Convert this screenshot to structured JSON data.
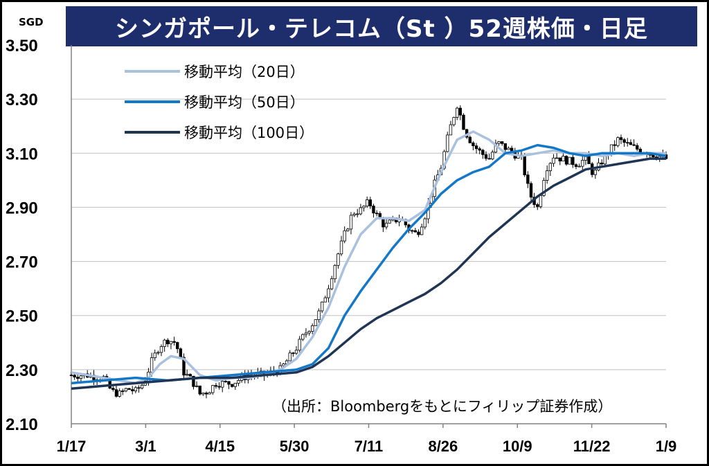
{
  "title": "シンガポール・テレコム（St ）52週株価・日足",
  "unit_label": "SGD",
  "source_note": "（出所：Bloombergをもとにフィリップ証券作成）",
  "colors": {
    "title_bg": "#1e2d6b",
    "ma20": "#a9c0df",
    "ma50": "#1478c8",
    "ma100": "#1f3553",
    "candle": "#000000"
  },
  "chart_data": {
    "type": "candlestick-line",
    "title": "シンガポール・テレコム（St ）52週株価・日足",
    "ylabel": "SGD",
    "ylim": [
      2.1,
      3.5
    ],
    "yticks": [
      "3.50",
      "3.30",
      "3.10",
      "2.90",
      "2.70",
      "2.50",
      "2.30",
      "2.10"
    ],
    "yvalues": [
      3.5,
      3.3,
      3.1,
      2.9,
      2.7,
      2.5,
      2.3,
      2.1
    ],
    "x_ticks": [
      "1/17",
      "3/1",
      "4/15",
      "5/30",
      "7/11",
      "8/26",
      "10/9",
      "11/22",
      "1/9"
    ],
    "grid": true,
    "legend_position": "top-left",
    "series": [
      {
        "name": "移動平均（20日）",
        "color": "#a9c0df",
        "x": [
          0,
          10,
          20,
          30,
          40,
          48,
          55,
          62,
          70,
          80,
          90,
          100,
          110,
          120,
          130,
          140,
          150,
          160,
          170,
          180,
          190,
          200,
          210,
          220,
          230,
          240,
          250,
          260,
          270,
          280,
          290,
          300,
          310,
          320,
          330,
          340,
          350,
          360,
          370
        ],
        "values": [
          2.29,
          2.28,
          2.27,
          2.26,
          2.25,
          2.27,
          2.32,
          2.35,
          2.34,
          2.28,
          2.26,
          2.27,
          2.27,
          2.28,
          2.3,
          2.34,
          2.42,
          2.53,
          2.68,
          2.8,
          2.86,
          2.86,
          2.85,
          2.89,
          3.03,
          3.15,
          3.18,
          3.15,
          3.1,
          3.09,
          3.1,
          3.11,
          3.1,
          3.1,
          3.09,
          3.1,
          3.09,
          3.1,
          3.1
        ]
      },
      {
        "name": "移動平均（50日）",
        "color": "#1478c8",
        "x": [
          0,
          20,
          40,
          60,
          80,
          100,
          120,
          140,
          150,
          160,
          170,
          180,
          190,
          200,
          210,
          220,
          230,
          240,
          250,
          260,
          270,
          280,
          290,
          300,
          310,
          320,
          330,
          340,
          350,
          360,
          370
        ],
        "values": [
          2.25,
          2.26,
          2.27,
          2.26,
          2.27,
          2.28,
          2.29,
          2.3,
          2.32,
          2.38,
          2.5,
          2.59,
          2.67,
          2.75,
          2.82,
          2.88,
          2.95,
          3.0,
          3.03,
          3.05,
          3.1,
          3.11,
          3.13,
          3.12,
          3.1,
          3.09,
          3.1,
          3.1,
          3.1,
          3.1,
          3.09
        ]
      },
      {
        "name": "移動平均（100日）",
        "color": "#1f3553",
        "x": [
          0,
          20,
          40,
          60,
          80,
          100,
          120,
          140,
          150,
          160,
          170,
          180,
          190,
          200,
          210,
          220,
          230,
          240,
          250,
          260,
          270,
          280,
          290,
          300,
          310,
          320,
          330,
          340,
          350,
          360,
          370
        ],
        "values": [
          2.23,
          2.24,
          2.25,
          2.26,
          2.27,
          2.27,
          2.28,
          2.29,
          2.31,
          2.35,
          2.4,
          2.45,
          2.49,
          2.52,
          2.55,
          2.58,
          2.62,
          2.67,
          2.73,
          2.79,
          2.84,
          2.89,
          2.94,
          2.98,
          3.01,
          3.04,
          3.05,
          3.06,
          3.07,
          3.08,
          3.08
        ]
      }
    ],
    "price_path": {
      "x": [
        0,
        10,
        20,
        25,
        30,
        35,
        40,
        45,
        50,
        55,
        60,
        65,
        70,
        75,
        80,
        85,
        90,
        100,
        110,
        120,
        130,
        140,
        145,
        150,
        155,
        160,
        165,
        170,
        175,
        180,
        185,
        190,
        195,
        200,
        205,
        210,
        215,
        220,
        225,
        230,
        235,
        240,
        245,
        250,
        255,
        260,
        265,
        270,
        275,
        280,
        285,
        290,
        295,
        300,
        305,
        310,
        315,
        320,
        325,
        330,
        340,
        350,
        360,
        370
      ],
      "values": [
        2.28,
        2.28,
        2.27,
        2.22,
        2.21,
        2.23,
        2.22,
        2.25,
        2.33,
        2.39,
        2.41,
        2.4,
        2.29,
        2.26,
        2.21,
        2.22,
        2.25,
        2.25,
        2.28,
        2.28,
        2.3,
        2.38,
        2.43,
        2.47,
        2.52,
        2.61,
        2.71,
        2.8,
        2.88,
        2.89,
        2.92,
        2.87,
        2.83,
        2.85,
        2.86,
        2.82,
        2.8,
        2.87,
        2.97,
        3.05,
        3.18,
        3.28,
        3.18,
        3.13,
        3.1,
        3.08,
        3.14,
        3.12,
        3.1,
        3.08,
        2.95,
        2.9,
        3.04,
        3.09,
        3.08,
        3.07,
        3.06,
        3.08,
        3.02,
        3.07,
        3.15,
        3.12,
        3.1,
        3.08
      ]
    },
    "legend": [
      {
        "label": "移動平均（20日）",
        "color": "#a9c0df"
      },
      {
        "label": "移動平均（50日）",
        "color": "#1478c8"
      },
      {
        "label": "移動平均（100日）",
        "color": "#1f3553"
      }
    ]
  }
}
